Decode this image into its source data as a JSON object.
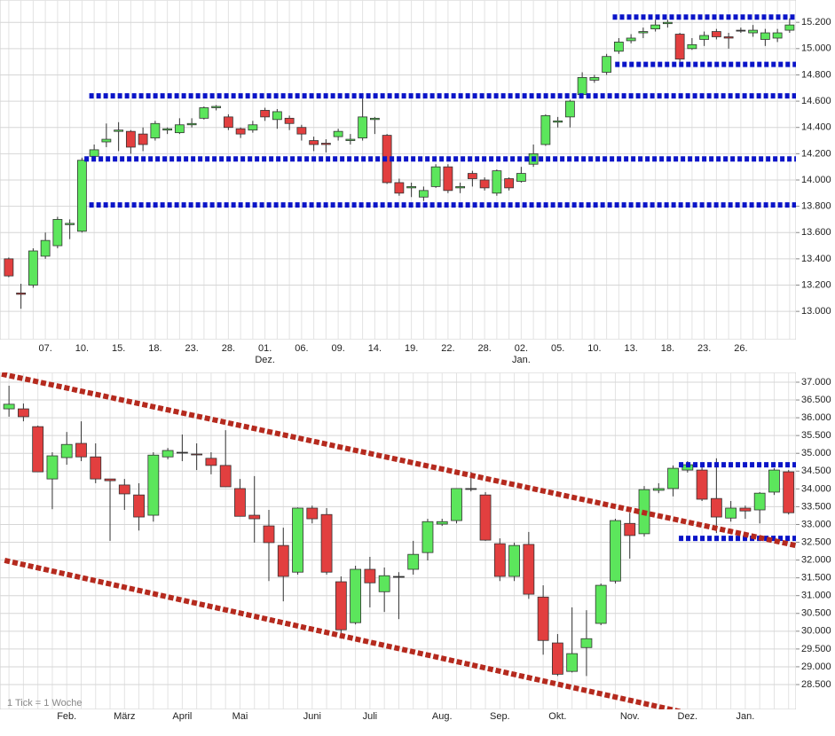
{
  "chart_data": [
    {
      "type": "candlestick",
      "categories": [
        null,
        null,
        null,
        "07.",
        null,
        null,
        "10.",
        null,
        null,
        "15.",
        null,
        null,
        "18.",
        null,
        null,
        "23.",
        null,
        null,
        "28.",
        null,
        null,
        "01.",
        null,
        null,
        "06.",
        null,
        null,
        "09.",
        null,
        null,
        "14.",
        null,
        null,
        "19.",
        null,
        null,
        "22.",
        null,
        null,
        "28.",
        null,
        null,
        "02.",
        null,
        null,
        "05.",
        null,
        null,
        "10.",
        null,
        null,
        "13.",
        null,
        null,
        "18.",
        null,
        null,
        "23.",
        null,
        null,
        "26.",
        null,
        null,
        null,
        null
      ],
      "category_months": [
        null,
        null,
        null,
        null,
        null,
        null,
        null,
        null,
        null,
        null,
        null,
        null,
        null,
        null,
        null,
        null,
        null,
        null,
        null,
        null,
        null,
        "Dez.",
        null,
        null,
        null,
        null,
        null,
        null,
        null,
        null,
        null,
        null,
        null,
        null,
        null,
        null,
        null,
        null,
        null,
        null,
        null,
        null,
        "Jan.",
        null,
        null,
        null,
        null,
        null,
        null,
        null,
        null,
        null,
        null,
        null,
        null,
        null,
        null,
        null,
        null,
        null,
        null,
        null,
        null,
        null,
        null
      ],
      "open": [
        13400,
        13140,
        13200,
        13420,
        13500,
        13660,
        13610,
        14180,
        14290,
        14370,
        14370,
        14350,
        14320,
        14380,
        14360,
        14420,
        14470,
        14550,
        14480,
        14390,
        14380,
        14530,
        14460,
        14470,
        14400,
        14300,
        14280,
        14330,
        14300,
        14320,
        14460,
        14340,
        13980,
        13940,
        13870,
        13950,
        14100,
        13940,
        14050,
        14000,
        13900,
        14010,
        13990,
        14120,
        14270,
        14440,
        14480,
        14650,
        14760,
        14820,
        14980,
        15060,
        15120,
        15150,
        15190,
        15110,
        15000,
        15070,
        15130,
        15090,
        15140,
        15120,
        15070,
        15080,
        15140
      ],
      "high": [
        13410,
        13210,
        13480,
        13600,
        13720,
        13700,
        14170,
        14270,
        14430,
        14440,
        14380,
        14400,
        14450,
        14400,
        14470,
        14470,
        14560,
        14570,
        14500,
        14400,
        14450,
        14550,
        14540,
        14490,
        14420,
        14330,
        14310,
        14390,
        14350,
        14660,
        14480,
        14350,
        14010,
        13980,
        13950,
        14120,
        14120,
        13980,
        14070,
        14020,
        14080,
        14020,
        14100,
        14270,
        14500,
        14480,
        14610,
        14820,
        14800,
        14960,
        15080,
        15110,
        15160,
        15220,
        15220,
        15120,
        15080,
        15130,
        15150,
        15120,
        15160,
        15180,
        15150,
        15150,
        15230
      ],
      "low": [
        13260,
        13020,
        13180,
        13400,
        13480,
        13550,
        13600,
        14150,
        14250,
        14220,
        14200,
        14220,
        14300,
        14350,
        14350,
        14400,
        14460,
        14530,
        14380,
        14320,
        14360,
        14450,
        14390,
        14380,
        14300,
        14220,
        14210,
        14300,
        14270,
        14300,
        14350,
        13970,
        13880,
        13870,
        13840,
        13940,
        13900,
        13900,
        13950,
        13920,
        13880,
        13920,
        13980,
        14100,
        14260,
        14400,
        14400,
        14640,
        14740,
        14800,
        14960,
        15040,
        15080,
        15130,
        15160,
        14900,
        14990,
        15020,
        15070,
        15000,
        15120,
        15090,
        15020,
        15050,
        15120
      ],
      "close": [
        13270,
        13130,
        13460,
        13540,
        13700,
        13670,
        14150,
        14230,
        14310,
        14380,
        14250,
        14270,
        14430,
        14390,
        14420,
        14430,
        14550,
        14560,
        14400,
        14350,
        14420,
        14480,
        14520,
        14430,
        14350,
        14270,
        14270,
        14370,
        14310,
        14480,
        14470,
        13980,
        13900,
        13950,
        13920,
        14100,
        13920,
        13950,
        14010,
        13940,
        14070,
        13940,
        14050,
        14200,
        14490,
        14450,
        14600,
        14780,
        14780,
        14940,
        15050,
        15080,
        15130,
        15180,
        15200,
        14920,
        15030,
        15100,
        15090,
        15080,
        15140,
        15140,
        15120,
        15120,
        15180
      ],
      "up_color": "#5ce65c",
      "down_color": "#e23f3f",
      "ylim": [
        12785,
        15370
      ],
      "yticks": [
        {
          "value": 13000,
          "label": "13.000"
        },
        {
          "value": 13200,
          "label": "13.200"
        },
        {
          "value": 13400,
          "label": "13.400"
        },
        {
          "value": 13600,
          "label": "13.600"
        },
        {
          "value": 13800,
          "label": "13.800"
        },
        {
          "value": 14000,
          "label": "14.000"
        },
        {
          "value": 14200,
          "label": "14.200"
        },
        {
          "value": 14400,
          "label": "14.400"
        },
        {
          "value": 14600,
          "label": "14.600"
        },
        {
          "value": 14800,
          "label": "14.800"
        },
        {
          "value": 15000,
          "label": "15.000"
        },
        {
          "value": 15200,
          "label": "15.200"
        }
      ],
      "levels": [
        {
          "value": 15240,
          "from": 49.5
        },
        {
          "value": 14880,
          "from": 49.7
        },
        {
          "value": 14640,
          "from": 6.6
        },
        {
          "value": 14160,
          "from": 6.2
        },
        {
          "value": 13810,
          "from": 6.6
        }
      ],
      "level_color": "#0a14c8",
      "grid": true
    },
    {
      "type": "candlestick",
      "categories": [
        null,
        null,
        null,
        null,
        "Feb.",
        null,
        null,
        null,
        "März",
        null,
        null,
        null,
        "April",
        null,
        null,
        null,
        "Mai",
        null,
        null,
        null,
        null,
        "Juni",
        null,
        null,
        null,
        "Juli",
        null,
        null,
        null,
        null,
        "Aug.",
        null,
        null,
        null,
        "Sep.",
        null,
        null,
        null,
        "Okt.",
        null,
        null,
        null,
        null,
        "Nov.",
        null,
        null,
        null,
        "Dez.",
        null,
        null,
        null,
        "Jan.",
        null,
        null,
        null
      ],
      "open": [
        36250,
        36250,
        35750,
        34280,
        34880,
        35280,
        34900,
        34280,
        34110,
        33830,
        33260,
        34900,
        35030,
        34980,
        34860,
        34660,
        34010,
        33260,
        32960,
        32410,
        31660,
        33460,
        33280,
        31390,
        30240,
        31740,
        31110,
        31540,
        31740,
        32210,
        33010,
        33110,
        34010,
        33830,
        32460,
        31540,
        32440,
        30960,
        29670,
        28870,
        29540,
        30220,
        31410,
        33030,
        32740,
        33960,
        34010,
        34530,
        34530,
        33730,
        33180,
        33460,
        33410,
        33910,
        34480
      ],
      "high": [
        36900,
        36400,
        35780,
        35030,
        35600,
        35900,
        35280,
        34280,
        34280,
        34160,
        35030,
        35150,
        35530,
        35280,
        35030,
        35650,
        34280,
        34360,
        33410,
        32910,
        33480,
        33530,
        33460,
        31540,
        31840,
        32090,
        31790,
        31660,
        32540,
        33160,
        33160,
        34010,
        34480,
        33910,
        32610,
        32490,
        32790,
        31290,
        29920,
        30670,
        30590,
        31340,
        33160,
        33330,
        34080,
        34160,
        34660,
        34780,
        34660,
        34860,
        33660,
        33530,
        33910,
        34580,
        34530
      ],
      "low": [
        36030,
        35900,
        34480,
        33430,
        34680,
        34780,
        34160,
        32540,
        33410,
        32830,
        33080,
        34830,
        34780,
        34530,
        34410,
        34060,
        33230,
        32490,
        31410,
        30840,
        31590,
        33030,
        31590,
        29790,
        30190,
        30670,
        30540,
        30340,
        31590,
        31990,
        32960,
        33030,
        33930,
        32540,
        31410,
        31410,
        30910,
        29340,
        28740,
        28840,
        28740,
        30170,
        31340,
        32040,
        32660,
        33880,
        33790,
        34460,
        33660,
        32760,
        33080,
        33160,
        33030,
        33830,
        33280
      ],
      "close": [
        36380,
        36030,
        34480,
        34930,
        35250,
        34900,
        34280,
        34230,
        33860,
        33210,
        34950,
        35080,
        35030,
        34960,
        34660,
        34060,
        33230,
        33160,
        32490,
        31540,
        33460,
        33160,
        31660,
        30040,
        31740,
        31360,
        31560,
        31540,
        32160,
        33080,
        33080,
        34010,
        34010,
        32560,
        31540,
        32410,
        31040,
        29740,
        28790,
        29370,
        29790,
        31290,
        33110,
        32690,
        33980,
        34010,
        34580,
        34680,
        33710,
        33210,
        33460,
        33380,
        33880,
        34530,
        33330
      ],
      "up_color": "#5ce65c",
      "down_color": "#e23f3f",
      "ylim": [
        27802,
        37274
      ],
      "yticks": [
        {
          "value": 28500,
          "label": "28.500"
        },
        {
          "value": 29000,
          "label": "29.000"
        },
        {
          "value": 29500,
          "label": "29.500"
        },
        {
          "value": 30000,
          "label": "30.000"
        },
        {
          "value": 30500,
          "label": "30.500"
        },
        {
          "value": 31000,
          "label": "31.000"
        },
        {
          "value": 31500,
          "label": "31.500"
        },
        {
          "value": 32000,
          "label": "32.000"
        },
        {
          "value": 32500,
          "label": "32.500"
        },
        {
          "value": 33000,
          "label": "33.000"
        },
        {
          "value": 33500,
          "label": "33.500"
        },
        {
          "value": 34000,
          "label": "34.000"
        },
        {
          "value": 34500,
          "label": "34.500"
        },
        {
          "value": 35000,
          "label": "35.000"
        },
        {
          "value": 35500,
          "label": "35.500"
        },
        {
          "value": 36000,
          "label": "36.000"
        },
        {
          "value": 36500,
          "label": "36.500"
        },
        {
          "value": 37000,
          "label": "37.000"
        }
      ],
      "levels": [
        {
          "value": 34680,
          "from": 46.4
        },
        {
          "value": 32610,
          "from": 46.4
        }
      ],
      "level_color": "#0a14c8",
      "trend_lines": [
        {
          "from": [
            -0.5,
            37230
          ],
          "to": [
            54.5,
            32410
          ]
        },
        {
          "from": [
            -0.3,
            31990
          ],
          "to": [
            48.6,
            27550
          ]
        }
      ],
      "trend_color": "#b52a1e",
      "note": "1 Tick = 1 Woche",
      "grid": true
    }
  ]
}
